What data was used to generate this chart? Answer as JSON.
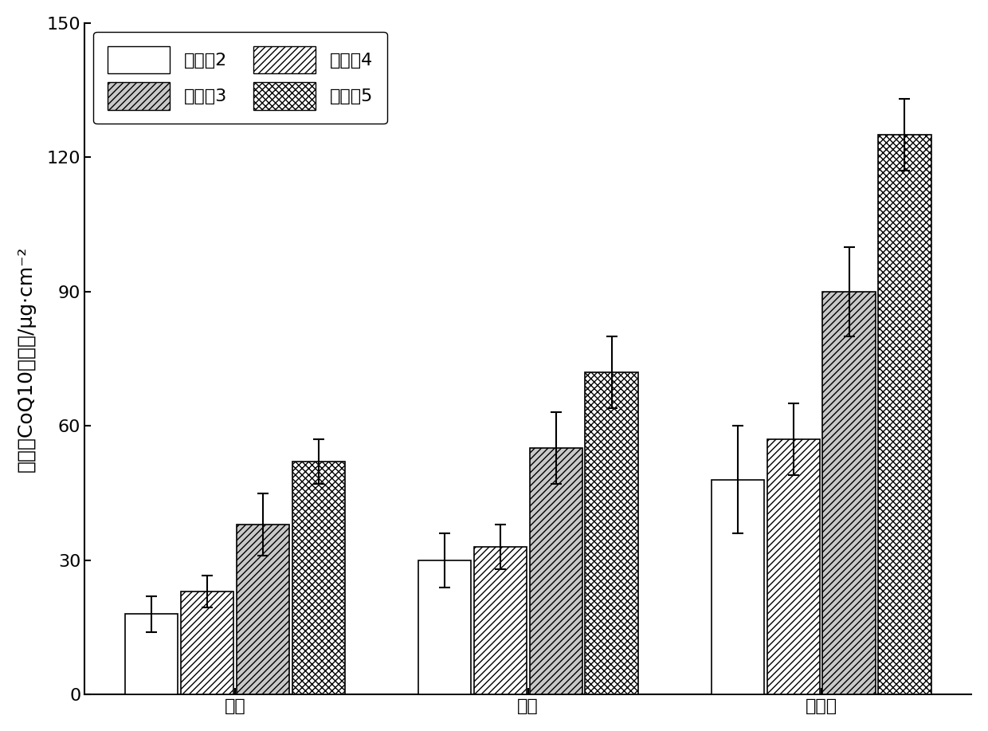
{
  "categories": [
    "表皮",
    "真皮",
    "总含量"
  ],
  "series": [
    {
      "name": "实施剹2",
      "values": [
        18.0,
        30.0,
        48.0
      ],
      "errors": [
        4.0,
        6.0,
        12.0
      ],
      "hatch": "",
      "facecolor": "#ffffff",
      "edgecolor": "#000000"
    },
    {
      "name": "实施攧4",
      "values": [
        23.0,
        33.0,
        57.0
      ],
      "errors": [
        3.5,
        5.0,
        8.0
      ],
      "hatch": "////",
      "facecolor": "#ffffff",
      "edgecolor": "#000000"
    },
    {
      "name": "实施攧3",
      "values": [
        38.0,
        55.0,
        90.0
      ],
      "errors": [
        7.0,
        8.0,
        10.0
      ],
      "hatch": "////",
      "facecolor": "#d0d0d0",
      "edgecolor": "#000000"
    },
    {
      "name": "实施攧5",
      "values": [
        52.0,
        72.0,
        125.0
      ],
      "errors": [
        5.0,
        8.0,
        8.0
      ],
      "hatch": "xxxx",
      "facecolor": "#ffffff",
      "edgecolor": "#000000"
    }
  ],
  "legend_names": [
    "实施剹2",
    "实施攧3",
    "实施攧4",
    "实施攧5"
  ],
  "ylim": [
    0,
    150
  ],
  "yticks": [
    0,
    30,
    60,
    90,
    120,
    150
  ],
  "ylabel": "皮肤中CoQ10的含量/μg·cm⁻²",
  "bar_width": 0.18,
  "background_color": "#ffffff",
  "legend_fontsize": 16,
  "axis_fontsize": 18,
  "tick_fontsize": 16
}
